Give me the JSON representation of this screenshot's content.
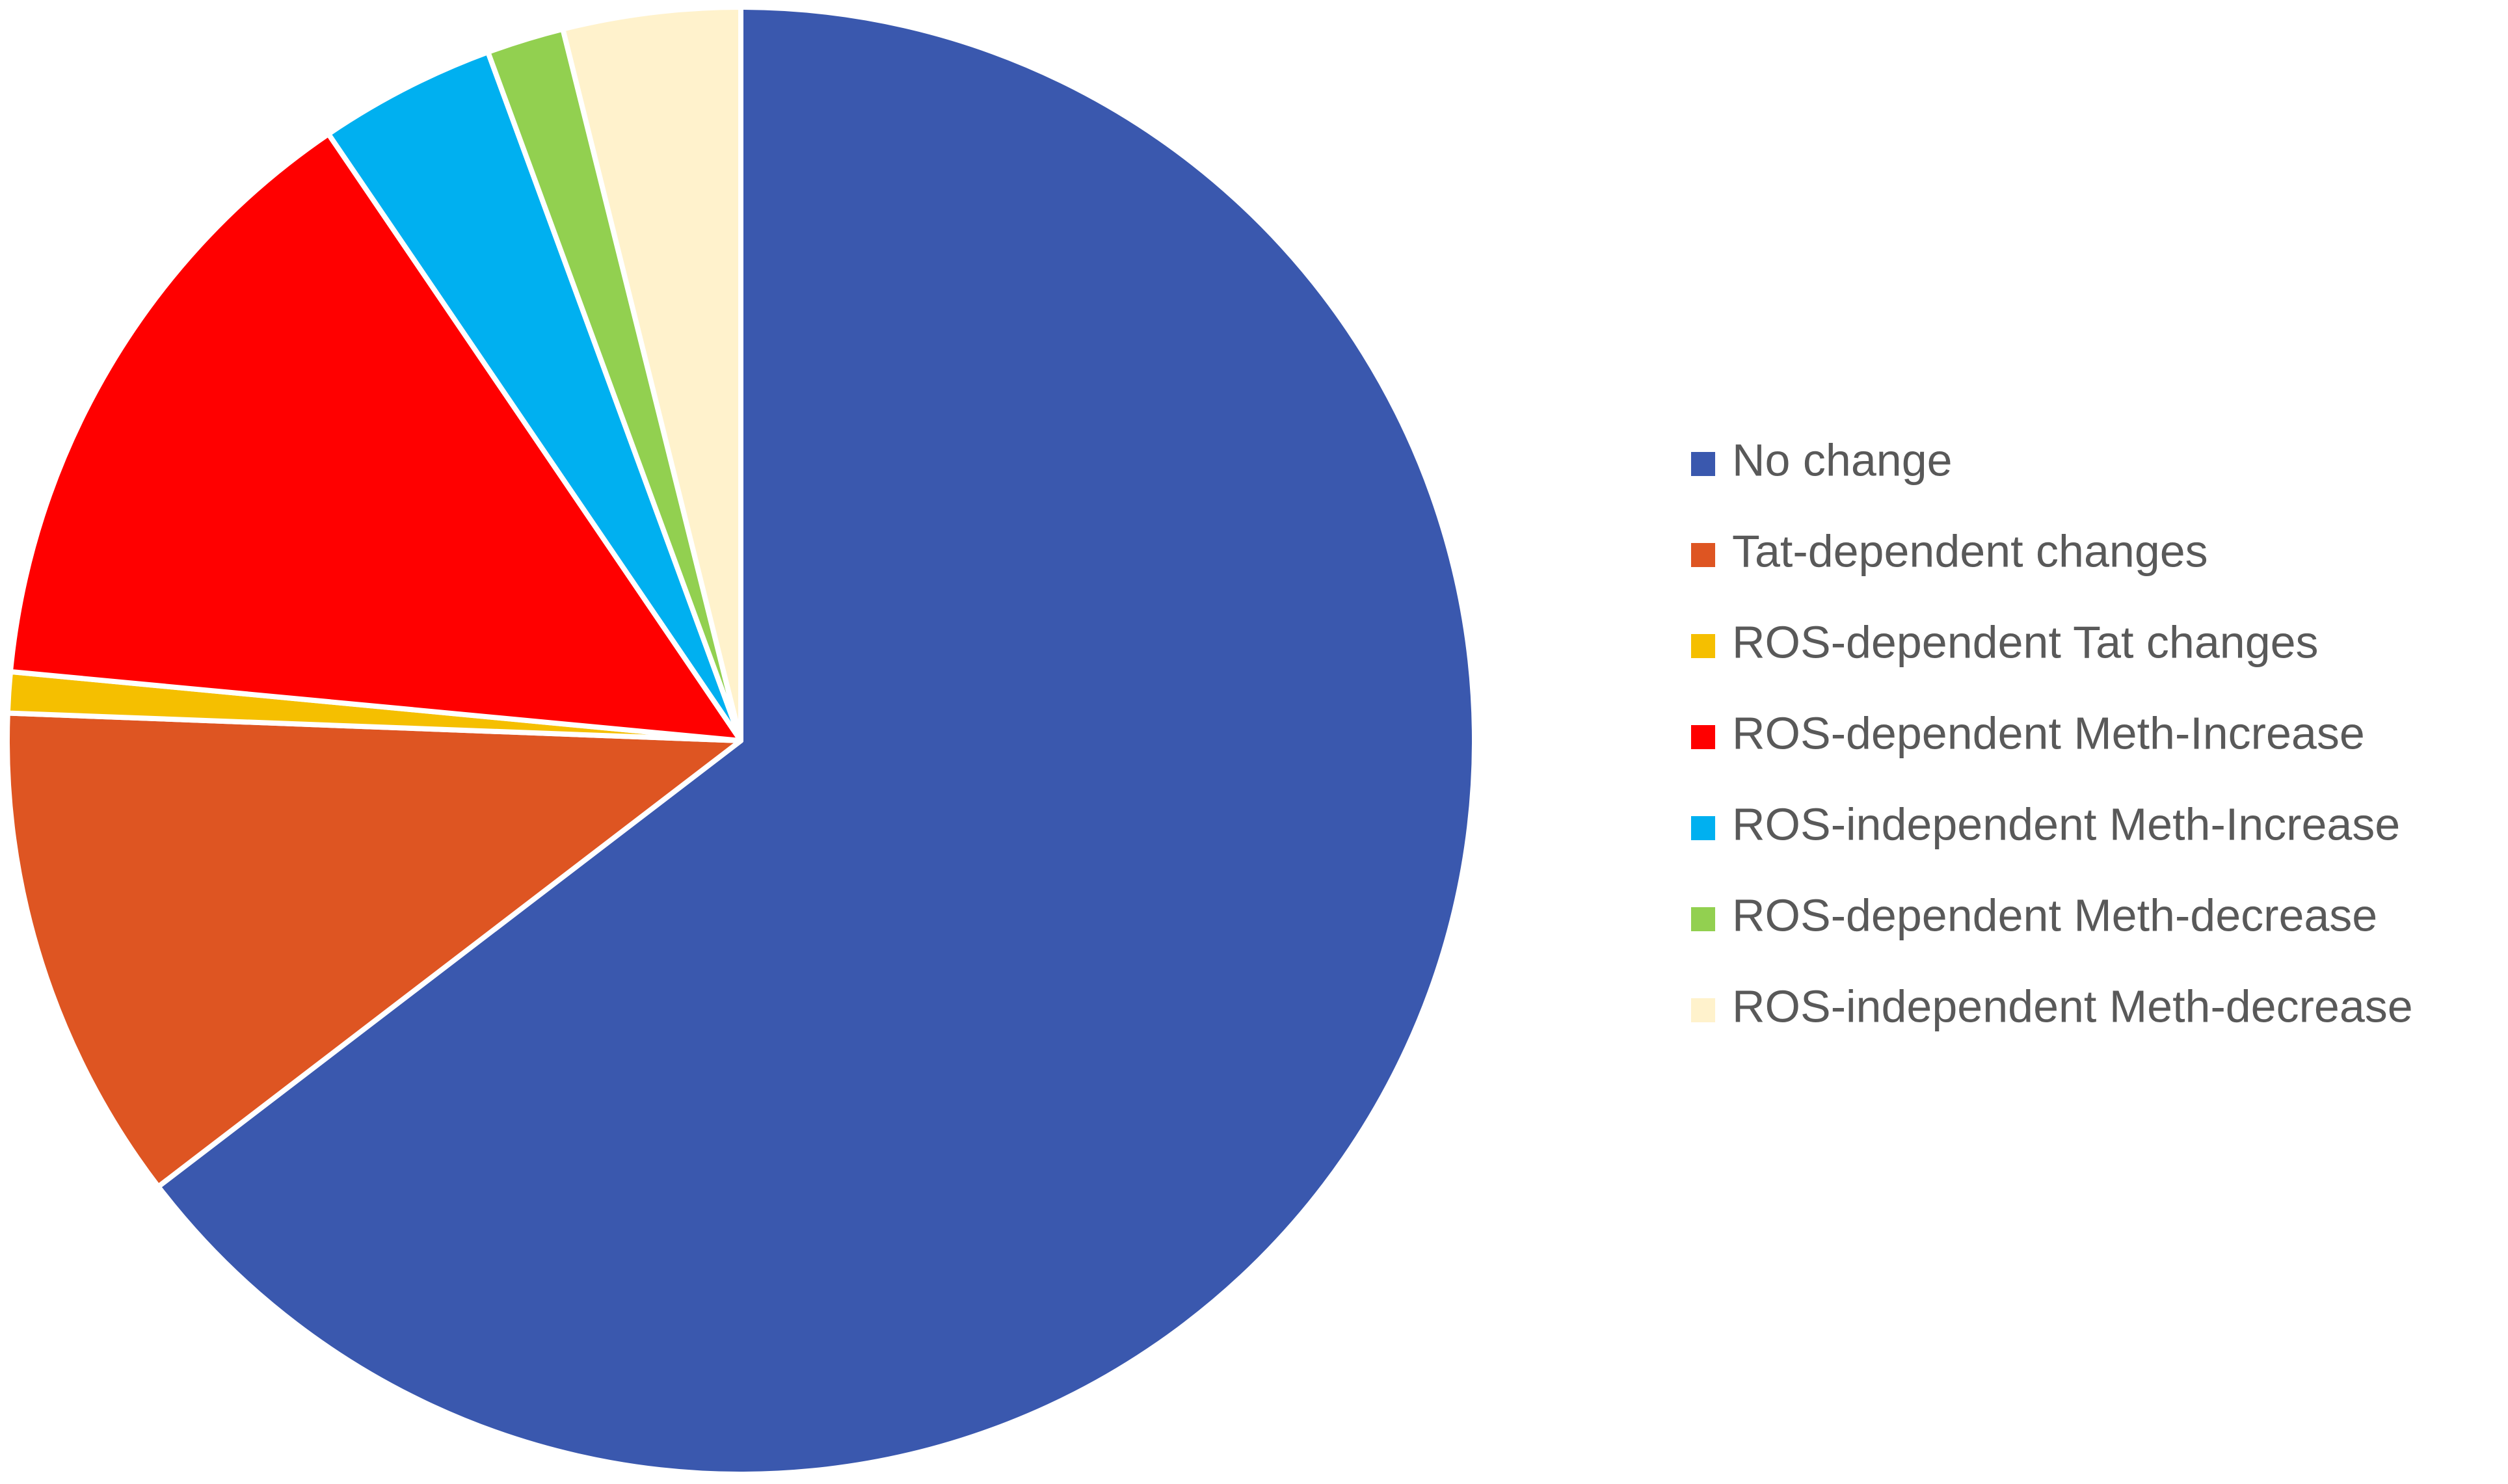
{
  "chart_data": {
    "type": "pie",
    "categories": [
      "No change",
      "Tat-dependent changes",
      "ROS-dependent Tat changes",
      "ROS-dependent Meth-Increase",
      "ROS-independent Meth-Increase",
      "ROS-dependent Meth-decrease",
      "ROS-independent Meth-decrease"
    ],
    "values": [
      64.6,
      11.0,
      0.9,
      14.0,
      3.9,
      1.7,
      3.9
    ],
    "colors": [
      "#3a58ae",
      "#de5522",
      "#f5bf00",
      "#ff0000",
      "#00b0f0",
      "#92d050",
      "#fff2cc"
    ],
    "legend": "right"
  }
}
